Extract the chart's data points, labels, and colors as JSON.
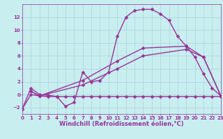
{
  "background_color": "#c8eef0",
  "grid_color": "#aad4d8",
  "line_color": "#993399",
  "xlabel": "Windchill (Refroidissement éolien,°C)",
  "xlim": [
    0,
    23
  ],
  "ylim": [
    -3,
    14
  ],
  "xticks": [
    0,
    1,
    2,
    3,
    4,
    5,
    6,
    7,
    8,
    9,
    10,
    11,
    12,
    13,
    14,
    15,
    16,
    17,
    18,
    19,
    20,
    21,
    22,
    23
  ],
  "yticks": [
    -2,
    0,
    2,
    4,
    6,
    8,
    10,
    12
  ],
  "s1x": [
    0,
    1,
    2,
    3,
    4,
    5,
    6,
    7,
    8,
    9,
    10,
    11,
    12,
    13,
    14,
    15,
    16,
    17,
    18,
    19,
    20,
    21,
    22,
    23
  ],
  "s1y": [
    -2.2,
    1.0,
    0.0,
    -0.1,
    -0.3,
    -1.8,
    -1.2,
    3.5,
    2.0,
    2.2,
    3.5,
    9.0,
    12.0,
    13.0,
    13.2,
    13.2,
    12.5,
    11.5,
    9.0,
    7.5,
    5.8,
    3.2,
    1.0,
    -0.2
  ],
  "s2x": [
    0,
    1,
    2,
    3,
    4,
    5,
    6,
    7,
    8,
    9,
    10,
    11,
    12,
    13,
    14,
    15,
    16,
    17,
    18,
    19,
    20,
    21,
    22,
    23
  ],
  "s2y": [
    -2.2,
    0,
    -0.2,
    -0.3,
    -0.3,
    -0.3,
    -0.3,
    -0.3,
    -0.3,
    -0.3,
    -0.3,
    -0.3,
    -0.3,
    -0.3,
    -0.3,
    -0.3,
    -0.3,
    -0.3,
    -0.3,
    -0.3,
    -0.3,
    -0.3,
    -0.3,
    -0.3
  ],
  "s3x": [
    1,
    2,
    7,
    11,
    14,
    19,
    21,
    23
  ],
  "s3y": [
    0.5,
    -0.2,
    1.5,
    4.0,
    6.0,
    7.0,
    5.8,
    -0.2
  ],
  "s4x": [
    1,
    2,
    7,
    11,
    14,
    19,
    21,
    23
  ],
  "s4y": [
    0.5,
    -0.2,
    2.2,
    5.2,
    7.2,
    7.5,
    5.8,
    -0.2
  ],
  "marker": "D",
  "marker_size": 2.5,
  "line_width": 1.0,
  "tick_fontsize": 5.0,
  "label_fontsize": 6.0
}
